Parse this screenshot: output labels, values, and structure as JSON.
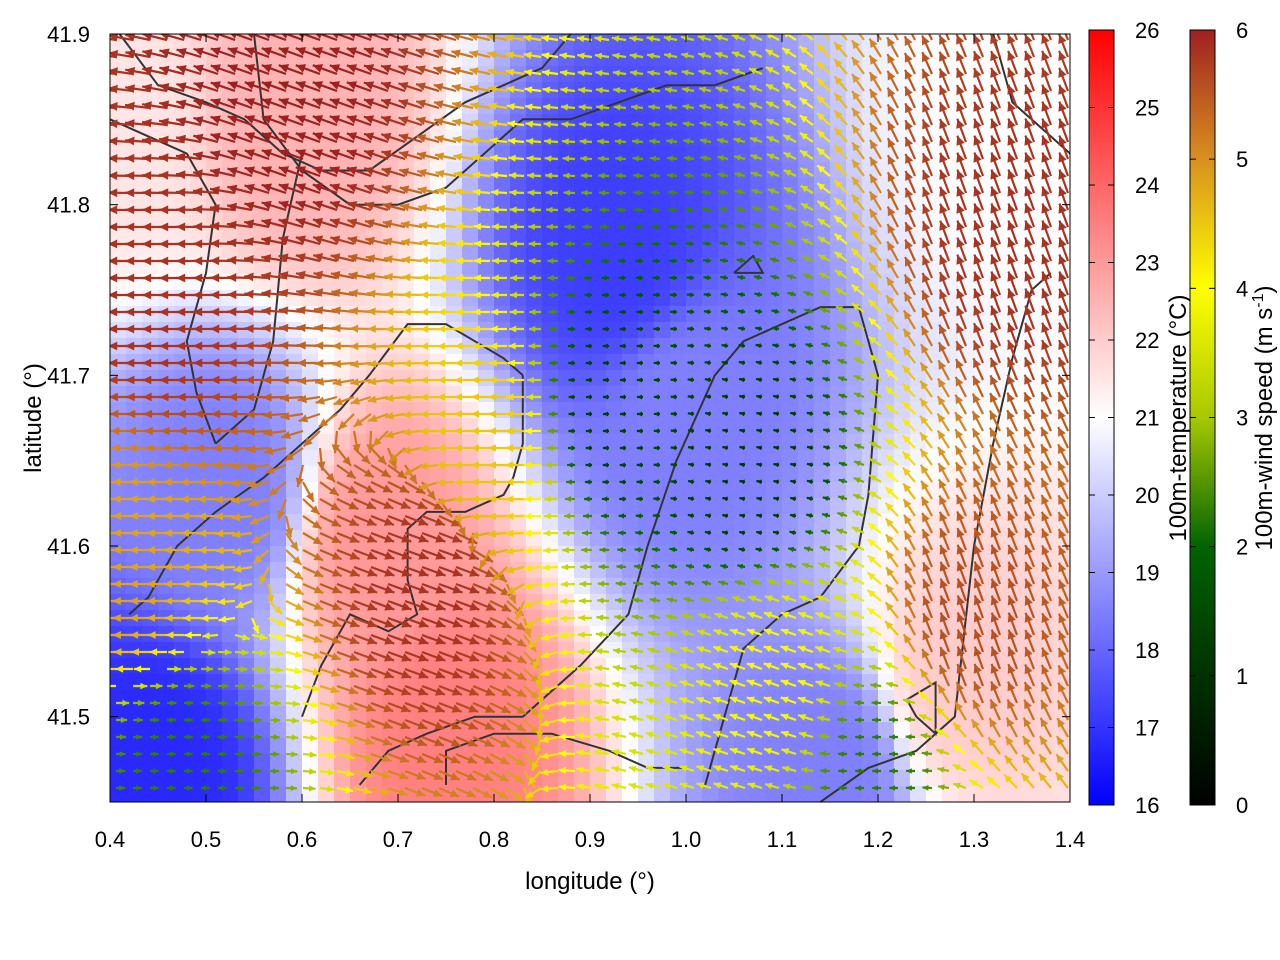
{
  "chart_data": {
    "type": "heatmap",
    "title": "",
    "xlabel": "longitude (°)",
    "ylabel": "latitude (°)",
    "xlim": [
      0.4,
      1.4
    ],
    "ylim": [
      41.45,
      41.9
    ],
    "x_ticks": [
      "0.4",
      "0.5",
      "0.6",
      "0.7",
      "0.8",
      "0.9",
      "1.0",
      "1.1",
      "1.2",
      "1.3",
      "1.4"
    ],
    "y_ticks": [
      "41.5",
      "41.6",
      "41.7",
      "41.8",
      "41.9"
    ],
    "temperature_colorbar": {
      "label": "100m-temperature (°C)",
      "range": [
        16,
        26
      ],
      "ticks": [
        "16",
        "17",
        "18",
        "19",
        "20",
        "21",
        "22",
        "23",
        "24",
        "25",
        "26"
      ],
      "colors": [
        "#0000ff",
        "#ffffff",
        "#ff0000"
      ]
    },
    "wind_colorbar": {
      "label": "100m-wind speed (m s",
      "label_superscript": "-1",
      "label_close": ")",
      "range": [
        0,
        6
      ],
      "ticks": [
        "0",
        "1",
        "2",
        "3",
        "4",
        "5",
        "6"
      ],
      "colors": [
        "#000000",
        "#006400",
        "#a8c800",
        "#ffff00",
        "#d89020",
        "#a02020"
      ]
    },
    "temperature_field_hotspots": [
      {
        "lon": 0.93,
        "lat": 41.77,
        "t": 17.2
      },
      {
        "lon": 1.0,
        "lat": 41.68,
        "t": 18.5
      },
      {
        "lon": 0.45,
        "lat": 41.47,
        "t": 16.8
      },
      {
        "lon": 1.15,
        "lat": 41.47,
        "t": 18.5
      },
      {
        "lon": 0.52,
        "lat": 41.63,
        "t": 18.5
      },
      {
        "lon": 0.75,
        "lat": 41.49,
        "t": 23.5
      },
      {
        "lon": 0.68,
        "lat": 41.6,
        "t": 23.0
      },
      {
        "lon": 0.6,
        "lat": 41.85,
        "t": 22.5
      },
      {
        "lon": 1.28,
        "lat": 41.52,
        "t": 22.0
      },
      {
        "lon": 0.4,
        "lat": 41.85,
        "t": 21.5
      },
      {
        "lon": 1.35,
        "lat": 41.85,
        "t": 21.0
      }
    ],
    "wind_field_hotspots": [
      {
        "lon": 0.92,
        "lat": 41.68,
        "speed": 0.8,
        "dir_deg": 180
      },
      {
        "lon": 1.07,
        "lat": 41.64,
        "speed": 0.7,
        "dir_deg": 190
      },
      {
        "lon": 0.47,
        "lat": 41.75,
        "speed": 5.8,
        "dir_deg": 180
      },
      {
        "lon": 0.6,
        "lat": 41.86,
        "speed": 6.0,
        "dir_deg": 200
      },
      {
        "lon": 1.35,
        "lat": 41.78,
        "speed": 5.8,
        "dir_deg": 250
      },
      {
        "lon": 0.72,
        "lat": 41.58,
        "speed": 5.8,
        "dir_deg": 20
      },
      {
        "lon": 1.3,
        "lat": 41.55,
        "speed": 5.5,
        "dir_deg": 250
      },
      {
        "lon": 1.2,
        "lat": 41.47,
        "speed": 1.5,
        "dir_deg": 180
      },
      {
        "lon": 0.47,
        "lat": 41.47,
        "speed": 1.5,
        "dir_deg": 0
      },
      {
        "lon": 1.1,
        "lat": 41.52,
        "speed": 3.5,
        "dir_deg": 200
      },
      {
        "lon": 0.8,
        "lat": 41.66,
        "speed": 4.2,
        "dir_deg": 180
      },
      {
        "lon": 0.42,
        "lat": 41.58,
        "speed": 4.6,
        "dir_deg": 180
      }
    ],
    "contours": [
      [
        [
          0.41,
          41.9
        ],
        [
          0.45,
          41.87
        ],
        [
          0.5,
          41.86
        ],
        [
          0.54,
          41.85
        ],
        [
          0.58,
          41.83
        ],
        [
          0.62,
          41.82
        ],
        [
          0.67,
          41.82
        ],
        [
          0.72,
          41.84
        ],
        [
          0.77,
          41.86
        ],
        [
          0.81,
          41.87
        ],
        [
          0.85,
          41.88
        ],
        [
          0.88,
          41.9
        ]
      ],
      [
        [
          0.4,
          41.85
        ],
        [
          0.44,
          41.84
        ],
        [
          0.48,
          41.83
        ],
        [
          0.51,
          41.8
        ],
        [
          0.5,
          41.76
        ],
        [
          0.48,
          41.72
        ],
        [
          0.49,
          41.69
        ],
        [
          0.51,
          41.66
        ]
      ],
      [
        [
          0.55,
          41.9
        ],
        [
          0.56,
          41.85
        ],
        [
          0.6,
          41.82
        ],
        [
          0.65,
          41.8
        ],
        [
          0.7,
          41.8
        ],
        [
          0.75,
          41.81
        ],
        [
          0.79,
          41.83
        ],
        [
          0.83,
          41.85
        ],
        [
          0.88,
          41.85
        ],
        [
          0.93,
          41.86
        ],
        [
          0.98,
          41.87
        ],
        [
          1.03,
          41.87
        ],
        [
          1.08,
          41.88
        ]
      ],
      [
        [
          0.6,
          41.83
        ],
        [
          0.58,
          41.78
        ],
        [
          0.57,
          41.72
        ],
        [
          0.55,
          41.68
        ],
        [
          0.51,
          41.66
        ]
      ],
      [
        [
          0.42,
          41.56
        ],
        [
          0.44,
          41.57
        ],
        [
          0.47,
          41.6
        ],
        [
          0.51,
          41.62
        ],
        [
          0.56,
          41.64
        ],
        [
          0.6,
          41.66
        ],
        [
          0.64,
          41.68
        ],
        [
          0.67,
          41.7
        ],
        [
          0.71,
          41.73
        ],
        [
          0.75,
          41.73
        ],
        [
          0.78,
          41.72
        ],
        [
          0.81,
          41.71
        ],
        [
          0.83,
          41.7
        ]
      ],
      [
        [
          0.83,
          41.7
        ],
        [
          0.83,
          41.66
        ],
        [
          0.82,
          41.64
        ],
        [
          0.81,
          41.63
        ],
        [
          0.77,
          41.62
        ],
        [
          0.73,
          41.62
        ],
        [
          0.71,
          41.61
        ],
        [
          0.71,
          41.58
        ],
        [
          0.72,
          41.56
        ],
        [
          0.69,
          41.55
        ],
        [
          0.65,
          41.56
        ],
        [
          0.62,
          41.53
        ],
        [
          0.6,
          41.5
        ]
      ],
      [
        [
          0.66,
          41.46
        ],
        [
          0.69,
          41.48
        ],
        [
          0.73,
          41.49
        ],
        [
          0.78,
          41.5
        ],
        [
          0.83,
          41.5
        ],
        [
          0.89,
          41.53
        ],
        [
          0.94,
          41.56
        ],
        [
          0.96,
          41.6
        ],
        [
          0.99,
          41.65
        ],
        [
          1.03,
          41.7
        ],
        [
          1.06,
          41.72
        ],
        [
          1.1,
          41.73
        ],
        [
          1.14,
          41.74
        ],
        [
          1.18,
          41.74
        ],
        [
          1.2,
          41.7
        ],
        [
          1.19,
          41.63
        ],
        [
          1.18,
          41.6
        ],
        [
          1.14,
          41.57
        ],
        [
          1.1,
          41.56
        ],
        [
          1.06,
          41.54
        ],
        [
          1.04,
          41.5
        ],
        [
          1.02,
          41.46
        ]
      ],
      [
        [
          0.75,
          41.46
        ],
        [
          0.75,
          41.48
        ],
        [
          0.8,
          41.49
        ],
        [
          0.86,
          41.49
        ],
        [
          0.92,
          41.48
        ],
        [
          0.96,
          41.47
        ],
        [
          1.0,
          41.47
        ]
      ],
      [
        [
          1.14,
          41.45
        ],
        [
          1.19,
          41.47
        ],
        [
          1.24,
          41.48
        ],
        [
          1.28,
          41.5
        ],
        [
          1.29,
          41.55
        ],
        [
          1.3,
          41.6
        ],
        [
          1.32,
          41.66
        ],
        [
          1.34,
          41.71
        ],
        [
          1.36,
          41.75
        ],
        [
          1.38,
          41.76
        ]
      ],
      [
        [
          1.23,
          41.51
        ],
        [
          1.26,
          41.52
        ],
        [
          1.26,
          41.49
        ],
        [
          1.24,
          41.5
        ],
        [
          1.23,
          41.51
        ]
      ],
      [
        [
          1.32,
          41.9
        ],
        [
          1.34,
          41.86
        ],
        [
          1.38,
          41.84
        ],
        [
          1.4,
          41.83
        ]
      ],
      [
        [
          1.05,
          41.76
        ],
        [
          1.08,
          41.76
        ],
        [
          1.07,
          41.77
        ],
        [
          1.05,
          41.76
        ]
      ]
    ]
  }
}
